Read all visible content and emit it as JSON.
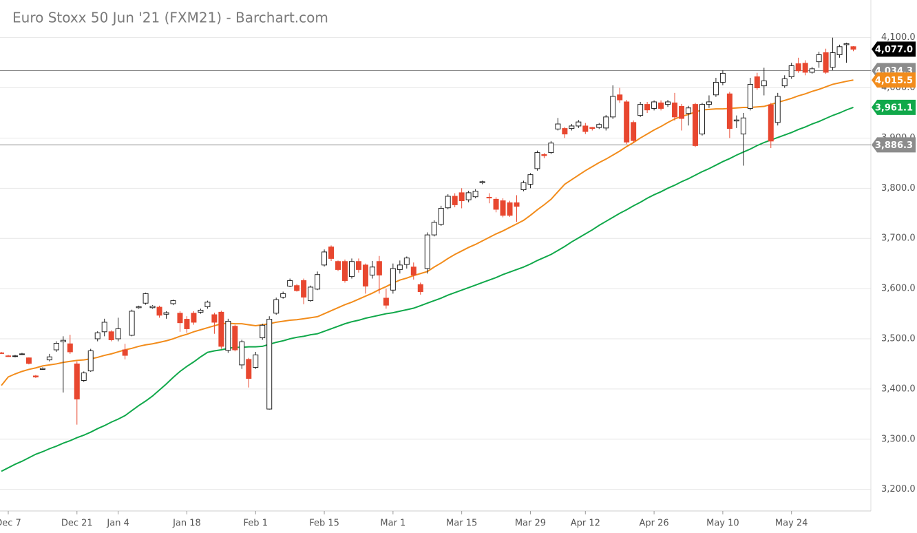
{
  "chart_data": {
    "type": "candlestick",
    "title": "Euro Stoxx 50 Jun '21 (FXM21) - Barchart.com",
    "categories": [
      null,
      "Dec 7",
      null,
      null,
      null,
      null,
      null,
      null,
      null,
      null,
      null,
      "Dec 21",
      null,
      null,
      null,
      null,
      null,
      "Jan 4",
      null,
      null,
      null,
      null,
      null,
      null,
      null,
      null,
      null,
      "Jan 18",
      null,
      null,
      null,
      null,
      null,
      null,
      null,
      null,
      null,
      "Feb 1",
      null,
      null,
      null,
      null,
      null,
      null,
      null,
      null,
      null,
      "Feb 15",
      null,
      null,
      null,
      null,
      null,
      null,
      null,
      null,
      null,
      "Mar 1",
      null,
      null,
      null,
      null,
      null,
      null,
      null,
      null,
      null,
      "Mar 15",
      null,
      null,
      null,
      null,
      null,
      null,
      null,
      null,
      null,
      "Mar 29",
      null,
      null,
      null,
      null,
      null,
      null,
      null,
      "Apr 12",
      null,
      null,
      null,
      null,
      null,
      null,
      null,
      null,
      null,
      "Apr 26",
      null,
      null,
      null,
      null,
      null,
      null,
      null,
      null,
      null,
      "May 10",
      null,
      null,
      null,
      null,
      null,
      null,
      null,
      null,
      null,
      "May 24",
      null,
      null,
      null,
      null,
      null,
      null,
      null,
      null,
      null
    ],
    "open": [
      3472,
      3466,
      3465,
      3470,
      3462,
      3426,
      3439,
      3458,
      3478,
      3494,
      3490,
      3450,
      3417,
      3436,
      3500,
      3514,
      3514,
      3500,
      3478,
      3507,
      3562,
      3571,
      3562,
      3563,
      3549,
      3570,
      3551,
      3539,
      3551,
      3553,
      3564,
      3548,
      3553,
      3477,
      3525,
      3448,
      3459,
      3443,
      3502,
      3360,
      3551,
      3583,
      3605,
      3606,
      3616,
      3576,
      3599,
      3647,
      3683,
      3654,
      3654,
      3624,
      3654,
      3647,
      3627,
      3654,
      3581,
      3597,
      3638,
      3648,
      3643,
      3608,
      3640,
      3707,
      3728,
      3761,
      3784,
      3791,
      3777,
      3783,
      3811,
      3782,
      3778,
      3775,
      3771,
      3771,
      3797,
      3808,
      3839,
      3867,
      3871,
      3918,
      3919,
      3919,
      3924,
      3924,
      3921,
      3921,
      3920,
      3942,
      3986,
      3972,
      3931,
      3945,
      3967,
      3959,
      3970,
      3967,
      3970,
      3963,
      3949,
      3967,
      3908,
      3967,
      3986,
      4011,
      3988,
      3934,
      3908,
      3959,
      4022,
      4004,
      3966,
      3931,
      4004,
      4022,
      4048,
      4049,
      4031,
      4052,
      4070,
      4041,
      4066,
      4086,
      4082
    ],
    "high": [
      3474,
      3468,
      3468,
      3472,
      3463,
      3428,
      3443,
      3470,
      3495,
      3505,
      3508,
      3455,
      3435,
      3480,
      3515,
      3540,
      3517,
      3542,
      3490,
      3558,
      3566,
      3592,
      3567,
      3566,
      3555,
      3578,
      3555,
      3545,
      3555,
      3560,
      3576,
      3552,
      3556,
      3540,
      3528,
      3498,
      3462,
      3474,
      3530,
      3545,
      3582,
      3594,
      3620,
      3609,
      3620,
      3606,
      3634,
      3678,
      3686,
      3656,
      3658,
      3660,
      3660,
      3650,
      3655,
      3665,
      3600,
      3650,
      3656,
      3664,
      3652,
      3612,
      3712,
      3736,
      3765,
      3788,
      3790,
      3800,
      3795,
      3798,
      3815,
      3790,
      3782,
      3780,
      3775,
      3786,
      3815,
      3830,
      3875,
      3870,
      3894,
      3940,
      3922,
      3928,
      3936,
      3930,
      3922,
      3930,
      3946,
      4005,
      4000,
      3976,
      3935,
      3972,
      3972,
      3975,
      3975,
      3976,
      3990,
      3968,
      3964,
      3970,
      3970,
      3985,
      4020,
      4035,
      3992,
      3945,
      3950,
      4020,
      4030,
      4040,
      3970,
      3990,
      4025,
      4050,
      4060,
      4055,
      4042,
      4072,
      4078,
      4100,
      4086,
      4090,
      4083
    ],
    "low": [
      3470,
      3464,
      3463,
      3468,
      3449,
      3422,
      3438,
      3455,
      3474,
      3393,
      3470,
      3329,
      3414,
      3434,
      3495,
      3505,
      3495,
      3495,
      3459,
      3505,
      3560,
      3568,
      3560,
      3542,
      3540,
      3567,
      3514,
      3512,
      3528,
      3550,
      3560,
      3510,
      3480,
      3472,
      3475,
      3440,
      3403,
      3440,
      3498,
      3359,
      3548,
      3580,
      3603,
      3594,
      3569,
      3574,
      3597,
      3644,
      3655,
      3635,
      3612,
      3620,
      3632,
      3590,
      3620,
      3590,
      3560,
      3590,
      3630,
      3640,
      3618,
      3588,
      3630,
      3704,
      3725,
      3758,
      3762,
      3760,
      3772,
      3780,
      3808,
      3770,
      3752,
      3742,
      3743,
      3733,
      3794,
      3800,
      3835,
      3860,
      3868,
      3915,
      3900,
      3915,
      3920,
      3908,
      3915,
      3918,
      3915,
      3938,
      3970,
      3888,
      3890,
      3942,
      3950,
      3955,
      3955,
      3962,
      3935,
      3915,
      3925,
      3882,
      3905,
      3960,
      3982,
      4005,
      3900,
      3920,
      3845,
      3955,
      3996,
      3985,
      3880,
      3925,
      4000,
      4018,
      4030,
      4025,
      4028,
      4040,
      4028,
      4035,
      4060,
      4050,
      4073
    ],
    "close": [
      3471,
      3465,
      3466,
      3470,
      3451,
      3424,
      3441,
      3464,
      3491,
      3497,
      3474,
      3380,
      3432,
      3476,
      3512,
      3533,
      3498,
      3520,
      3467,
      3555,
      3564,
      3590,
      3565,
      3547,
      3552,
      3576,
      3532,
      3520,
      3533,
      3557,
      3573,
      3533,
      3485,
      3535,
      3478,
      3494,
      3421,
      3468,
      3527,
      3539,
      3578,
      3590,
      3616,
      3596,
      3583,
      3603,
      3628,
      3673,
      3660,
      3638,
      3616,
      3654,
      3638,
      3605,
      3643,
      3627,
      3567,
      3640,
      3647,
      3661,
      3627,
      3594,
      3707,
      3732,
      3760,
      3784,
      3767,
      3775,
      3791,
      3794,
      3813,
      3781,
      3758,
      3746,
      3746,
      3764,
      3811,
      3827,
      3871,
      3865,
      3890,
      3928,
      3908,
      3924,
      3932,
      3913,
      3919,
      3927,
      3942,
      3983,
      3976,
      3892,
      3895,
      3967,
      3956,
      3972,
      3959,
      3972,
      3942,
      3939,
      3960,
      3885,
      3967,
      3972,
      4011,
      4029,
      3919,
      3936,
      3940,
      4007,
      4000,
      4014,
      3894,
      3983,
      4018,
      4044,
      4034,
      4031,
      4038,
      4066,
      4031,
      4070,
      4082,
      4088,
      4077
    ],
    "up_color": "#ffffff",
    "down_color": "#e8472f",
    "overlays": [
      {
        "color": "#f28c1b",
        "values": [
          3407,
          3424,
          3430,
          3435,
          3439,
          3442,
          3446,
          3448,
          3450,
          3453,
          3455,
          3457,
          3458,
          3460,
          3463,
          3467,
          3470,
          3474,
          3478,
          3481,
          3485,
          3488,
          3490,
          3493,
          3496,
          3500,
          3505,
          3509,
          3514,
          3518,
          3522,
          3526,
          3530,
          3531,
          3530,
          3530,
          3528,
          3526,
          3528,
          3530,
          3533,
          3535,
          3537,
          3538,
          3540,
          3542,
          3544,
          3550,
          3556,
          3562,
          3568,
          3573,
          3579,
          3585,
          3591,
          3598,
          3604,
          3611,
          3617,
          3621,
          3626,
          3630,
          3634,
          3643,
          3651,
          3660,
          3668,
          3675,
          3682,
          3688,
          3695,
          3702,
          3709,
          3715,
          3722,
          3729,
          3736,
          3746,
          3757,
          3767,
          3778,
          3793,
          3808,
          3817,
          3826,
          3835,
          3843,
          3851,
          3858,
          3866,
          3874,
          3883,
          3891,
          3900,
          3908,
          3916,
          3923,
          3931,
          3938,
          3943,
          3947,
          3952,
          3956,
          3957,
          3958,
          3958,
          3959,
          3960,
          3961,
          3961,
          3962,
          3963,
          3967,
          3971,
          3975,
          3979,
          3984,
          3988,
          3993,
          3997,
          4002,
          4007,
          4010,
          4013,
          4015.5
        ]
      },
      {
        "color": "#10a84a",
        "values": [
          3236,
          3243,
          3250,
          3256,
          3263,
          3270,
          3275,
          3281,
          3286,
          3292,
          3297,
          3303,
          3308,
          3314,
          3321,
          3327,
          3334,
          3340,
          3347,
          3357,
          3367,
          3376,
          3386,
          3398,
          3410,
          3423,
          3435,
          3445,
          3454,
          3464,
          3473,
          3476,
          3478,
          3481,
          3483,
          3483,
          3484,
          3484,
          3485,
          3489,
          3493,
          3496,
          3500,
          3503,
          3505,
          3508,
          3510,
          3515,
          3520,
          3525,
          3530,
          3534,
          3537,
          3541,
          3544,
          3547,
          3550,
          3552,
          3555,
          3558,
          3561,
          3566,
          3571,
          3576,
          3581,
          3587,
          3592,
          3597,
          3602,
          3607,
          3612,
          3617,
          3622,
          3628,
          3633,
          3638,
          3643,
          3649,
          3656,
          3662,
          3668,
          3676,
          3684,
          3693,
          3701,
          3709,
          3717,
          3726,
          3734,
          3742,
          3750,
          3757,
          3765,
          3772,
          3780,
          3787,
          3793,
          3800,
          3806,
          3813,
          3819,
          3826,
          3833,
          3839,
          3846,
          3853,
          3859,
          3866,
          3872,
          3878,
          3885,
          3891,
          3896,
          3901,
          3906,
          3911,
          3917,
          3922,
          3928,
          3933,
          3939,
          3945,
          3950,
          3956,
          3961.1
        ]
      }
    ],
    "ylim": [
      3157,
      4175
    ],
    "yticks": [
      {
        "value": 3200,
        "label": "3,200.0"
      },
      {
        "value": 3300,
        "label": "3,300.0"
      },
      {
        "value": 3400,
        "label": "3,400.0"
      },
      {
        "value": 3500,
        "label": "3,500.0"
      },
      {
        "value": 3600,
        "label": "3,600.0"
      },
      {
        "value": 3700,
        "label": "3,700.0"
      },
      {
        "value": 3800,
        "label": "3,800.0"
      },
      {
        "value": 3900,
        "label": "3,900.0"
      },
      {
        "value": 4000,
        "label": "4,000.0"
      },
      {
        "value": 4100,
        "label": "4,100.0"
      }
    ],
    "grid": true,
    "price_markers": [
      {
        "value": 4077.0,
        "label": "4,077.0",
        "color": "#000000",
        "line": false
      },
      {
        "value": 4034.3,
        "label": "4,034.3",
        "color": "#8c8c8c",
        "line": true
      },
      {
        "value": 4015.5,
        "label": "4,015.5",
        "color": "#f28c1b",
        "line": false
      },
      {
        "value": 3961.1,
        "label": "3,961.1",
        "color": "#10a84a",
        "line": false
      },
      {
        "value": 3886.3,
        "label": "3,886.3",
        "color": "#8c8c8c",
        "line": true
      }
    ]
  }
}
